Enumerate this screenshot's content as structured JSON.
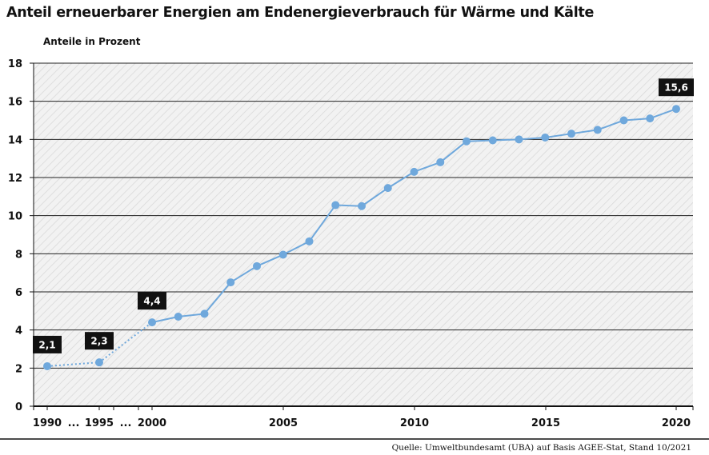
{
  "title": "Anteil erneuerbarer Energien am Endenergieverbrauch für Wärme und Kälte",
  "source": "Quelle: Umweltbundesamt (UBA) auf Basis AGEE-Stat, Stand 10/2021",
  "chart_data": {
    "type": "line",
    "title": "Anteil erneuerbarer Energien am Endenergieverbrauch für Wärme und Kälte",
    "ylabel": "Anteile in Prozent",
    "xlabel": "",
    "ylim": [
      0,
      18
    ],
    "yticks": [
      0,
      2,
      4,
      6,
      8,
      10,
      12,
      14,
      16,
      18
    ],
    "xticks": [
      "1990",
      "...",
      "1995",
      "...",
      "2000",
      "2005",
      "2010",
      "2015",
      "2020"
    ],
    "grid": true,
    "color": "#6fa8dc",
    "points": [
      {
        "x": "1990",
        "y": 2.1
      },
      {
        "x": "1995",
        "y": 2.3
      },
      {
        "x": "2000",
        "y": 4.4
      },
      {
        "x": "2001",
        "y": 4.7
      },
      {
        "x": "2002",
        "y": 4.85
      },
      {
        "x": "2003",
        "y": 6.5
      },
      {
        "x": "2004",
        "y": 7.35
      },
      {
        "x": "2005",
        "y": 7.95
      },
      {
        "x": "2006",
        "y": 8.65
      },
      {
        "x": "2007",
        "y": 10.55
      },
      {
        "x": "2008",
        "y": 10.5
      },
      {
        "x": "2009",
        "y": 11.45
      },
      {
        "x": "2010",
        "y": 12.3
      },
      {
        "x": "2011",
        "y": 12.8
      },
      {
        "x": "2012",
        "y": 13.9
      },
      {
        "x": "2013",
        "y": 13.95
      },
      {
        "x": "2014",
        "y": 14.0
      },
      {
        "x": "2015",
        "y": 14.1
      },
      {
        "x": "2016",
        "y": 14.3
      },
      {
        "x": "2017",
        "y": 14.5
      },
      {
        "x": "2018",
        "y": 15.0
      },
      {
        "x": "2019",
        "y": 15.1
      },
      {
        "x": "2020",
        "y": 15.6
      }
    ],
    "dotted_segments_through": "2000",
    "data_labels": [
      {
        "x": "1990",
        "text": "2,1"
      },
      {
        "x": "1995",
        "text": "2,3"
      },
      {
        "x": "2000",
        "text": "4,4"
      },
      {
        "x": "2020",
        "text": "15,6"
      }
    ]
  }
}
